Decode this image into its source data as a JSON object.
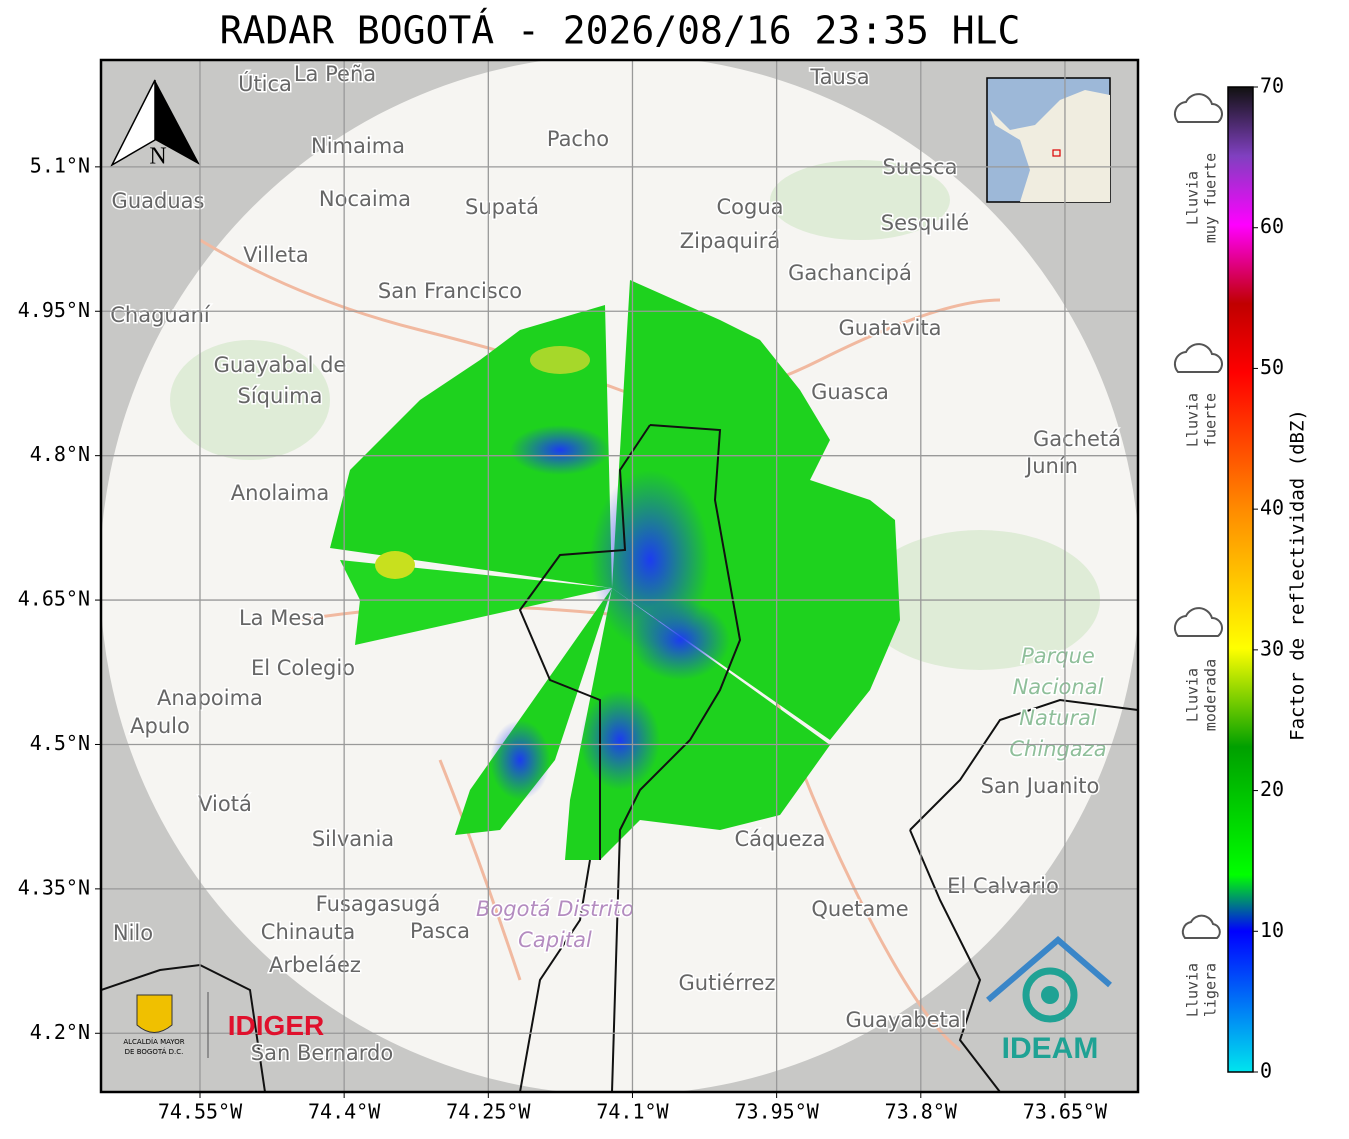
{
  "title": "RADAR BOGOTÁ - 2026/08/16 23:35 HLC",
  "map": {
    "lon_range": [
      -74.653,
      -73.574
    ],
    "lat_range": [
      4.139,
      5.211
    ],
    "lon_ticks": [
      {
        "value": -74.55,
        "label": "74.55°W"
      },
      {
        "value": -74.4,
        "label": "74.4°W"
      },
      {
        "value": -74.25,
        "label": "74.25°W"
      },
      {
        "value": -74.1,
        "label": "74.1°W"
      },
      {
        "value": -73.95,
        "label": "73.95°W"
      },
      {
        "value": -73.8,
        "label": "73.8°W"
      },
      {
        "value": -73.65,
        "label": "73.65°W"
      }
    ],
    "lat_ticks": [
      {
        "value": 5.1,
        "label": "5.1°N"
      },
      {
        "value": 4.95,
        "label": "4.95°N"
      },
      {
        "value": 4.8,
        "label": "4.8°N"
      },
      {
        "value": 4.65,
        "label": "4.65°N"
      },
      {
        "value": 4.5,
        "label": "4.5°N"
      },
      {
        "value": 4.35,
        "label": "4.35°N"
      },
      {
        "value": 4.2,
        "label": "4.2°N"
      }
    ],
    "north": "N",
    "places": [
      "Útica",
      "La Peña",
      "Tausa",
      "Pacho",
      "Nimaima",
      "Suesca",
      "Guaduas",
      "Nocaima",
      "Supatá",
      "Cogua",
      "Sesquilé",
      "Zipaquirá",
      "Villeta",
      "Gachancipá",
      "San Francisco",
      "Chaguaní",
      "Guatavita",
      [
        "Guayabal de",
        "Síquima"
      ],
      "Guasca",
      "Gachetá",
      "Junín",
      "Anolaima",
      "La Mesa",
      "El Colegio",
      [
        "Parque",
        "Nacional",
        "Natural",
        "Chingaza"
      ],
      "Anapoima",
      "Apulo",
      "San Juanito",
      "Viotá",
      "Silvania",
      "Cáqueza",
      "El Calvario",
      "Fusagasugá",
      "Quetame",
      [
        "Bogotá Distrito",
        "Capital"
      ],
      "Nilo",
      "Chinauta",
      "Pasca",
      "Arbeláez",
      "Gutiérrez",
      "Guayabetal",
      "San Bernardo"
    ],
    "logos": {
      "alcaldia": [
        "ALCALDÍA MAYOR",
        "DE BOGOTÁ D.C."
      ],
      "idiger": "IDIGER",
      "ideam": "IDEAM"
    }
  },
  "colorbar": {
    "label": "Factor de reflectividad (dBZ)",
    "range": [
      0,
      70
    ],
    "ticks": [
      0,
      10,
      20,
      30,
      40,
      50,
      60,
      70
    ]
  },
  "rain_levels": [
    [
      "Lluvia",
      "muy fuerte"
    ],
    [
      "Lluvia",
      "fuerte"
    ],
    [
      "Lluvia",
      "moderada"
    ],
    [
      "Lluvia",
      "ligera"
    ]
  ]
}
